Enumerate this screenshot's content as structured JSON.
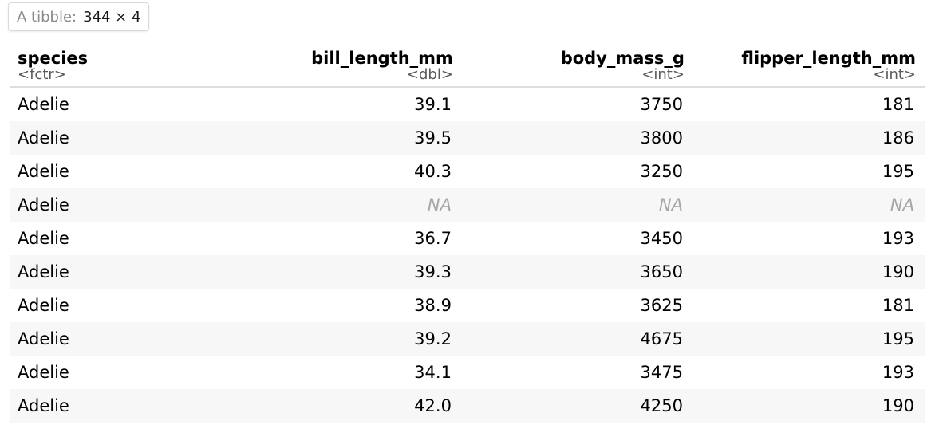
{
  "badge": {
    "label": "A tibble:",
    "dims": "344 × 4"
  },
  "columns": [
    {
      "name": "species",
      "type": "<fctr>",
      "align": "left"
    },
    {
      "name": "bill_length_mm",
      "type": "<dbl>",
      "align": "right"
    },
    {
      "name": "body_mass_g",
      "type": "<int>",
      "align": "right"
    },
    {
      "name": "flipper_length_mm",
      "type": "<int>",
      "align": "right"
    }
  ],
  "rows": [
    [
      "Adelie",
      "39.1",
      "3750",
      "181"
    ],
    [
      "Adelie",
      "39.5",
      "3800",
      "186"
    ],
    [
      "Adelie",
      "40.3",
      "3250",
      "195"
    ],
    [
      "Adelie",
      "NA",
      "NA",
      "NA"
    ],
    [
      "Adelie",
      "36.7",
      "3450",
      "193"
    ],
    [
      "Adelie",
      "39.3",
      "3650",
      "190"
    ],
    [
      "Adelie",
      "38.9",
      "3625",
      "181"
    ],
    [
      "Adelie",
      "39.2",
      "4675",
      "195"
    ],
    [
      "Adelie",
      "34.1",
      "3475",
      "193"
    ],
    [
      "Adelie",
      "42.0",
      "4250",
      "190"
    ]
  ],
  "colors": {
    "na_text": "#a6a6a6",
    "type_text": "#5a5a5a",
    "stripe": "#f7f7f7"
  }
}
